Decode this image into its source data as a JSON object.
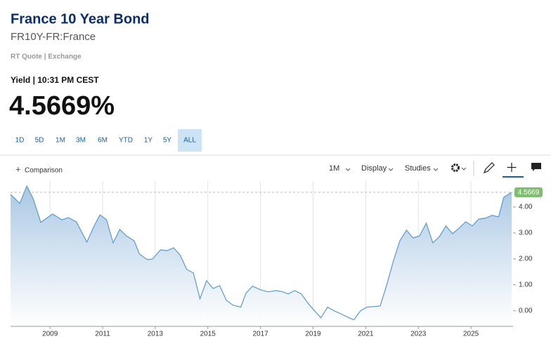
{
  "header": {
    "title": "France 10 Year Bond",
    "symbol": "FR10Y-FR:France",
    "quote_type": "RT Quote | Exchange",
    "yield_time": "Yield | 10:31 PM CEST",
    "yield_value": "4.5669%"
  },
  "ranges": [
    "1D",
    "5D",
    "1M",
    "3M",
    "6M",
    "YTD",
    "1Y",
    "5Y",
    "ALL"
  ],
  "selected_range": "ALL",
  "toolbar": {
    "comparison": "Comparison",
    "interval": "1M",
    "display": "Display",
    "studies": "Studies"
  },
  "chart_data": {
    "type": "area",
    "color": "#5a9acb",
    "x": [
      2007.5,
      2007.85,
      2008.12,
      2008.36,
      2008.65,
      2009.1,
      2009.45,
      2009.7,
      2010.0,
      2010.4,
      2010.7,
      2010.9,
      2011.15,
      2011.4,
      2011.65,
      2011.9,
      2012.2,
      2012.4,
      2012.7,
      2012.9,
      2013.2,
      2013.45,
      2013.7,
      2013.95,
      2014.2,
      2014.45,
      2014.7,
      2014.95,
      2015.2,
      2015.45,
      2015.7,
      2015.95,
      2016.25,
      2016.45,
      2016.7,
      2017.0,
      2017.3,
      2017.6,
      2017.85,
      2018.05,
      2018.3,
      2018.55,
      2018.8,
      2019.05,
      2019.3,
      2019.55,
      2019.8,
      2020.1,
      2020.3,
      2020.55,
      2020.8,
      2021.05,
      2021.3,
      2021.55,
      2021.8,
      2022.05,
      2022.3,
      2022.55,
      2022.8,
      2023.05,
      2023.3,
      2023.55,
      2023.8,
      2024.05,
      2024.3,
      2024.55,
      2024.8,
      2025.05,
      2025.3,
      2025.55,
      2025.8,
      2026.05,
      2026.25,
      2026.55
    ],
    "values": [
      4.49,
      4.14,
      4.81,
      4.32,
      3.41,
      3.73,
      3.51,
      3.59,
      3.43,
      2.65,
      3.32,
      3.7,
      3.51,
      2.62,
      3.14,
      2.89,
      2.7,
      2.19,
      1.97,
      2.0,
      2.35,
      2.32,
      2.43,
      2.14,
      1.59,
      1.46,
      0.46,
      1.16,
      0.86,
      0.97,
      0.41,
      0.22,
      0.14,
      0.68,
      0.95,
      0.81,
      0.73,
      0.78,
      0.73,
      0.65,
      0.78,
      0.65,
      0.3,
      0.0,
      -0.27,
      0.14,
      0.0,
      -0.14,
      -0.24,
      -0.35,
      0.0,
      0.14,
      0.16,
      0.19,
      1.0,
      1.92,
      2.7,
      3.11,
      2.81,
      2.89,
      3.38,
      2.62,
      2.86,
      3.27,
      2.97,
      3.19,
      3.43,
      3.27,
      3.54,
      3.57,
      3.68,
      3.62,
      4.38,
      4.5669
    ],
    "last_value": 4.5669,
    "xlim": [
      2007.5,
      2026.6
    ],
    "xticks": [
      2009,
      2011,
      2013,
      2015,
      2017,
      2019,
      2021,
      2023,
      2025
    ],
    "ylim": [
      -0.6,
      5.0
    ],
    "yticks": [
      {
        "value": 0,
        "label": "0.00"
      },
      {
        "value": 1,
        "label": "1.00"
      },
      {
        "value": 2,
        "label": "2.00"
      },
      {
        "value": 3,
        "label": "3.00"
      },
      {
        "value": 4,
        "label": "4.00"
      }
    ],
    "grid": true
  }
}
